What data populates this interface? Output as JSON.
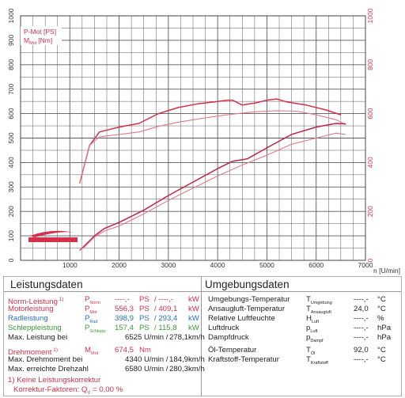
{
  "chart_data": {
    "type": "line",
    "x_unit": "n [U/min]",
    "xlim": [
      0,
      7000
    ],
    "ylim": [
      0,
      1000
    ],
    "x_ticks": [
      "1000",
      "2000",
      "3000",
      "4000",
      "5000",
      "6000",
      "7000"
    ],
    "y_ticks_left": [
      "0",
      "100",
      "200",
      "300",
      "400",
      "500",
      "600",
      "700",
      "800",
      "900",
      "1000"
    ],
    "y_ticks_right": [
      "0",
      "200",
      "400",
      "600",
      "800",
      "1000"
    ],
    "legend": [
      "P-Mot [PS]",
      "M_Mot [Nm]"
    ],
    "grid": true,
    "series": [
      {
        "name": "M_Mot [Nm]",
        "color": "#d5304a",
        "x": [
          1200,
          1400,
          1600,
          1800,
          2000,
          2400,
          2800,
          3200,
          3600,
          4000,
          4200,
          4300,
          4500,
          4800,
          5000,
          5200,
          5400,
          5800,
          6200,
          6500
        ],
        "values": [
          315,
          470,
          525,
          535,
          545,
          560,
          600,
          625,
          640,
          650,
          655,
          655,
          635,
          645,
          655,
          660,
          648,
          635,
          615,
          595
        ]
      },
      {
        "name": "M_Mot [Nm]",
        "color": "#e07a88",
        "x": [
          1200,
          1400,
          1600,
          1800,
          2000,
          2400,
          2800,
          3200,
          3600,
          4000,
          4400,
          4800,
          5200,
          5600,
          6000,
          6400,
          6600
        ],
        "values": [
          315,
          470,
          505,
          510,
          515,
          525,
          548,
          565,
          578,
          590,
          600,
          608,
          612,
          610,
          595,
          575,
          555
        ]
      },
      {
        "name": "P-Mot [PS]",
        "color": "#c0244a",
        "x": [
          1200,
          1300,
          1500,
          1700,
          2000,
          2500,
          3000,
          3500,
          4000,
          4300,
          4600,
          5000,
          5500,
          6000,
          6400,
          6600
        ],
        "values": [
          40,
          60,
          100,
          130,
          155,
          205,
          265,
          320,
          375,
          405,
          415,
          460,
          515,
          545,
          560,
          558
        ]
      },
      {
        "name": "P-Mot [PS]",
        "color": "#e07a88",
        "x": [
          1200,
          1300,
          1500,
          1700,
          2000,
          2500,
          3000,
          3500,
          4000,
          4500,
          5000,
          5500,
          6000,
          6400,
          6600
        ],
        "values": [
          40,
          55,
          95,
          120,
          140,
          190,
          245,
          295,
          345,
          390,
          430,
          475,
          500,
          520,
          515
        ]
      }
    ]
  },
  "legend_panel": {
    "line1": "P-Mot [PS]",
    "line2": "M",
    "line2_sub": "Mot",
    "line2_unit": "[Nm]"
  },
  "leistung": {
    "title": "Leistungsdaten",
    "rows": [
      {
        "label": "Norm-Leistung",
        "note": "1)",
        "sym": "P",
        "sub": "Norm",
        "v1": "----,-",
        "u1": "PS",
        "v2": "/ ----,-",
        "u2": "kW"
      },
      {
        "label": "Motorleistung",
        "note": "",
        "sym": "P",
        "sub": "Mot",
        "v1": "556,3",
        "u1": "PS",
        "v2": "/ 409,1",
        "u2": "kW"
      },
      {
        "label": "Radleistung",
        "note": "",
        "sym": "P",
        "sub": "Rad",
        "v1": "398,9",
        "u1": "PS",
        "v2": "/ 293,4",
        "u2": "kW"
      },
      {
        "label": "Schleppleistung",
        "note": "",
        "sym": "P",
        "sub": "Schlepp",
        "v1": "157,4",
        "u1": "PS",
        "v2": "/ 115,8",
        "u2": "kW"
      },
      {
        "label": "Max. Leistung bei",
        "note": "",
        "sym": "",
        "sub": "",
        "v1": "6525",
        "u1": "U/min /",
        "v2": "278,1",
        "u2": "km/h"
      },
      {
        "label": "Drehmoment",
        "note": "1)",
        "sym": "M",
        "sub": "Mot",
        "v1": "674,5",
        "u1": "Nm",
        "v2": "",
        "u2": ""
      },
      {
        "label": "Max. Drehmoment bei",
        "note": "",
        "sym": "",
        "sub": "",
        "v1": "4340",
        "u1": "U/min /",
        "v2": "184,9",
        "u2": "km/h"
      },
      {
        "label": "Max. erreichte Drehzahl",
        "note": "",
        "sym": "",
        "sub": "",
        "v1": "6580",
        "u1": "U/min /",
        "v2": "280,3",
        "u2": "km/h"
      }
    ],
    "footnote1": "1) Keine Leistungskorrektur",
    "footnote2": "Korrektur-Faktoren: Q",
    "footnote2_sub": "V",
    "footnote2_val": "= 0,00 %"
  },
  "umgebung": {
    "title": "Umgebungsdaten",
    "rows": [
      {
        "label": "Umgebungs-Temperatur",
        "sym": "T",
        "sub": "Umgebung",
        "val": "----,-",
        "unit": "°C"
      },
      {
        "label": "Ansaugluft-Temperatur",
        "sym": "T",
        "sub": "Ansaugluft",
        "val": "24,0",
        "unit": "°C"
      },
      {
        "label": "Relative Luftfeuchte",
        "sym": "H",
        "sub": "Luft",
        "val": "----,-",
        "unit": "%"
      },
      {
        "label": "Luftdruck",
        "sym": "p",
        "sub": "Luft",
        "val": "----,-",
        "unit": "hPa"
      },
      {
        "label": "Dampfdruck",
        "sym": "p",
        "sub": "Dampf",
        "val": "----,-",
        "unit": "hPa"
      },
      {
        "label": "Öl-Temperatur",
        "sym": "T",
        "sub": "Öl",
        "val": "92,0",
        "unit": "°C"
      },
      {
        "label": "Kraftstoff-Temperatur",
        "sym": "T",
        "sub": "Kraftstoff",
        "val": "----,-",
        "unit": "°C"
      }
    ]
  },
  "colors": {
    "power": "#c0244a",
    "torque": "#d5304a",
    "secondary": "#e07a88",
    "grid": "#5a5a5a",
    "label_red": "#d5304a",
    "label_blue": "#2b6fc4",
    "label_green": "#3a9c3a"
  }
}
